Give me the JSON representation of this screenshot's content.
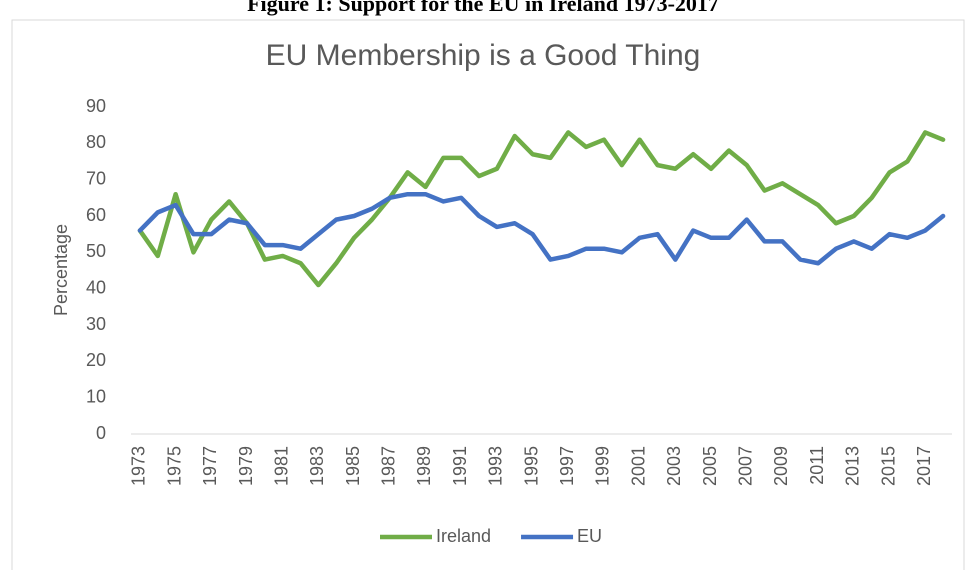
{
  "caption": "Figure 1: Support for the EU in Ireland 1973-2017",
  "chart_data": {
    "type": "line",
    "title": "EU Membership is a Good Thing",
    "y_label": "Percentage",
    "categories": [
      "1973",
      null,
      "1975",
      null,
      "1977",
      null,
      "1979",
      null,
      "1981",
      null,
      "1983",
      null,
      "1985",
      null,
      "1987",
      null,
      "1989",
      null,
      "1991",
      null,
      "1993",
      null,
      "1995",
      null,
      "1997",
      null,
      "1999",
      null,
      "2001",
      null,
      "2003",
      null,
      "2005",
      null,
      "2007",
      null,
      "2009",
      null,
      "2011",
      null,
      "2013",
      null,
      "2015",
      null,
      "2017",
      null
    ],
    "series": [
      {
        "name": "Ireland",
        "color": "#70ad47",
        "values": [
          56,
          49,
          66,
          50,
          59,
          64,
          58,
          48,
          49,
          47,
          41,
          47,
          54,
          59,
          65,
          72,
          68,
          76,
          76,
          71,
          73,
          82,
          77,
          76,
          83,
          79,
          81,
          74,
          81,
          74,
          73,
          77,
          73,
          78,
          74,
          67,
          69,
          66,
          63,
          58,
          60,
          65,
          72,
          75,
          83,
          81
        ]
      },
      {
        "name": "EU",
        "color": "#4472c4",
        "values": [
          56,
          61,
          63,
          55,
          55,
          59,
          58,
          52,
          52,
          51,
          55,
          59,
          60,
          62,
          65,
          66,
          66,
          64,
          65,
          60,
          57,
          58,
          55,
          48,
          49,
          51,
          51,
          50,
          54,
          55,
          48,
          56,
          54,
          54,
          59,
          53,
          53,
          48,
          47,
          51,
          53,
          51,
          55,
          54,
          56,
          60
        ]
      }
    ],
    "ylim": [
      0,
      90
    ],
    "yticks": [
      0,
      10,
      20,
      30,
      40,
      50,
      60,
      70,
      80,
      90
    ],
    "grid": false,
    "legend": "bottom"
  }
}
